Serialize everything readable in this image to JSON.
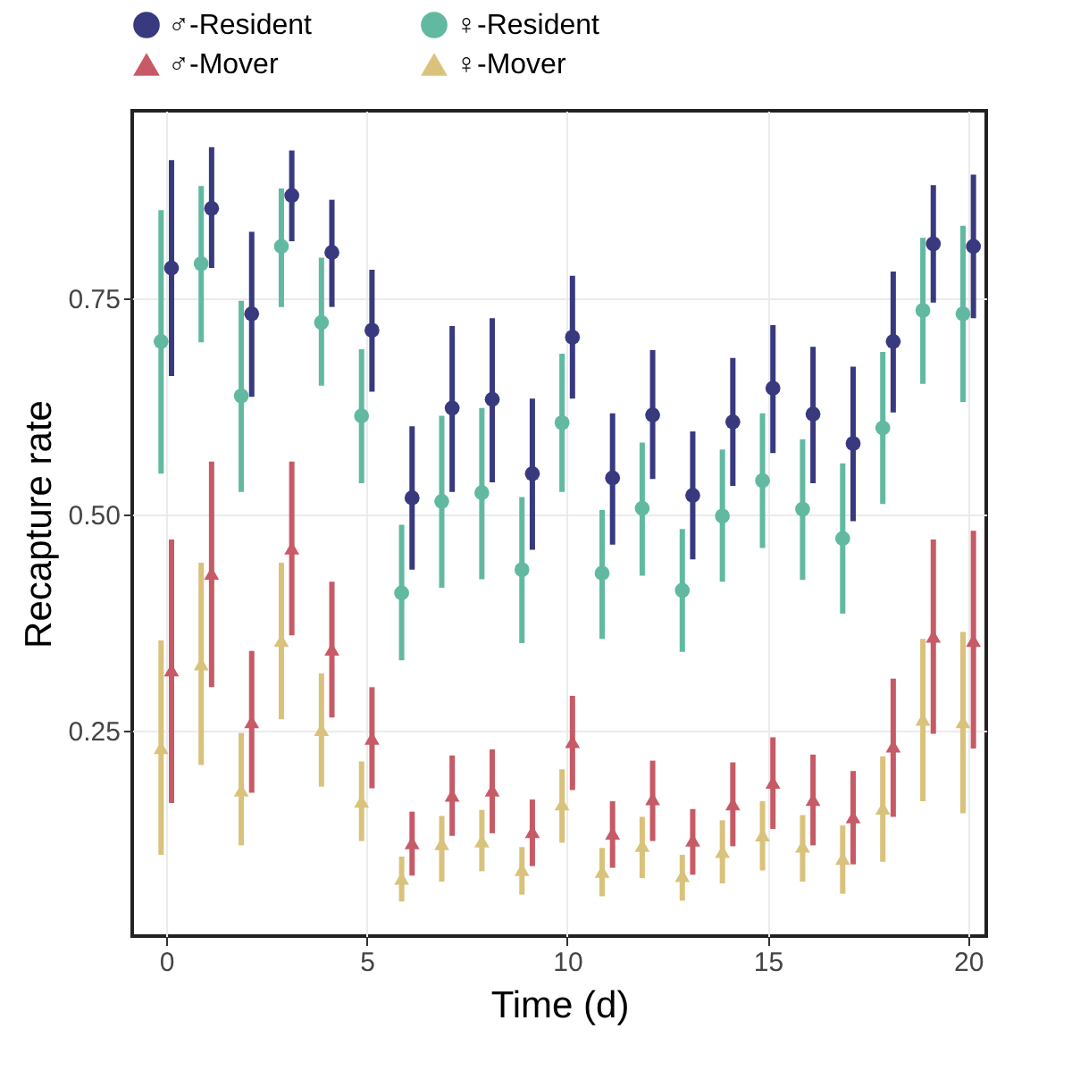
{
  "chart_data": {
    "type": "scatter",
    "xlabel": "Time (d)",
    "ylabel": "Recapture rate",
    "xlim": [
      -0.85,
      20.45
    ],
    "xticks": [
      0,
      5,
      10,
      15,
      20
    ],
    "ylim": [
      0.012,
      0.967
    ],
    "yticks": [
      {
        "value": 0.25,
        "label": "0.25"
      },
      {
        "value": 0.5,
        "label": "0.50"
      },
      {
        "value": 0.75,
        "label": "0.75"
      }
    ],
    "grid": true,
    "legend": "top",
    "series": [
      {
        "name": "♂-Resident",
        "color": "#38397f",
        "marker": "circle",
        "x": [
          0.13,
          1.13,
          2.13,
          3.13,
          4.13,
          5.13,
          6.13,
          7.13,
          8.13,
          9.13,
          10.13,
          11.13,
          12.13,
          13.13,
          14.13,
          15.13,
          16.13,
          17.13,
          18.13,
          19.13,
          20.13
        ],
        "values": [
          0.785,
          0.854,
          0.732,
          0.869,
          0.803,
          0.713,
          0.519,
          0.623,
          0.633,
          0.547,
          0.705,
          0.542,
          0.615,
          0.522,
          0.607,
          0.646,
          0.616,
          0.582,
          0.7,
          0.813,
          0.81
        ],
        "errors": [
          [
            0.66,
            0.91
          ],
          [
            0.785,
            0.925
          ],
          [
            0.636,
            0.827
          ],
          [
            0.816,
            0.921
          ],
          [
            0.74,
            0.864
          ],
          [
            0.642,
            0.783
          ],
          [
            0.436,
            0.602
          ],
          [
            0.526,
            0.718
          ],
          [
            0.537,
            0.727
          ],
          [
            0.459,
            0.634
          ],
          [
            0.634,
            0.776
          ],
          [
            0.465,
            0.617
          ],
          [
            0.541,
            0.69
          ],
          [
            0.448,
            0.596
          ],
          [
            0.533,
            0.681
          ],
          [
            0.571,
            0.719
          ],
          [
            0.536,
            0.694
          ],
          [
            0.492,
            0.671
          ],
          [
            0.618,
            0.781
          ],
          [
            0.745,
            0.881
          ],
          [
            0.727,
            0.893
          ]
        ]
      },
      {
        "name": "♀-Resident",
        "color": "#62b9a1",
        "marker": "circle",
        "x": [
          -0.13,
          0.87,
          1.87,
          2.87,
          3.87,
          4.87,
          5.87,
          6.87,
          7.87,
          8.87,
          9.87,
          10.87,
          11.87,
          12.87,
          13.87,
          14.87,
          15.87,
          16.87,
          17.87,
          18.87,
          19.87
        ],
        "values": [
          0.7,
          0.79,
          0.637,
          0.81,
          0.722,
          0.614,
          0.409,
          0.515,
          0.525,
          0.436,
          0.606,
          0.432,
          0.507,
          0.412,
          0.498,
          0.539,
          0.506,
          0.472,
          0.6,
          0.736,
          0.732
        ],
        "errors": [
          [
            0.547,
            0.852
          ],
          [
            0.699,
            0.88
          ],
          [
            0.526,
            0.747
          ],
          [
            0.74,
            0.877
          ],
          [
            0.649,
            0.797
          ],
          [
            0.536,
            0.691
          ],
          [
            0.331,
            0.488
          ],
          [
            0.415,
            0.614
          ],
          [
            0.425,
            0.623
          ],
          [
            0.351,
            0.52
          ],
          [
            0.526,
            0.686
          ],
          [
            0.356,
            0.505
          ],
          [
            0.429,
            0.583
          ],
          [
            0.341,
            0.483
          ],
          [
            0.422,
            0.575
          ],
          [
            0.461,
            0.617
          ],
          [
            0.424,
            0.587
          ],
          [
            0.385,
            0.559
          ],
          [
            0.512,
            0.688
          ],
          [
            0.651,
            0.82
          ],
          [
            0.63,
            0.834
          ]
        ]
      },
      {
        "name": "♂-Mover",
        "color": "#c65a66",
        "marker": "triangle",
        "x": [
          0.13,
          1.13,
          2.13,
          3.13,
          4.13,
          5.13,
          6.13,
          7.13,
          8.13,
          9.13,
          10.13,
          11.13,
          12.13,
          13.13,
          14.13,
          15.13,
          16.13,
          17.13,
          18.13,
          19.13,
          20.13
        ],
        "values": [
          0.32,
          0.432,
          0.26,
          0.461,
          0.344,
          0.241,
          0.12,
          0.175,
          0.181,
          0.133,
          0.237,
          0.131,
          0.171,
          0.123,
          0.165,
          0.19,
          0.17,
          0.15,
          0.232,
          0.359,
          0.354
        ],
        "errors": [
          [
            0.166,
            0.471
          ],
          [
            0.3,
            0.561
          ],
          [
            0.178,
            0.342
          ],
          [
            0.36,
            0.561
          ],
          [
            0.265,
            0.422
          ],
          [
            0.183,
            0.3
          ],
          [
            0.082,
            0.156
          ],
          [
            0.128,
            0.221
          ],
          [
            0.131,
            0.228
          ],
          [
            0.093,
            0.17
          ],
          [
            0.181,
            0.29
          ],
          [
            0.091,
            0.168
          ],
          [
            0.122,
            0.215
          ],
          [
            0.083,
            0.159
          ],
          [
            0.116,
            0.213
          ],
          [
            0.136,
            0.242
          ],
          [
            0.117,
            0.222
          ],
          [
            0.095,
            0.203
          ],
          [
            0.15,
            0.31
          ],
          [
            0.246,
            0.471
          ],
          [
            0.229,
            0.481
          ]
        ]
      },
      {
        "name": "♀-Mover",
        "color": "#d9c27c",
        "marker": "triangle",
        "x": [
          -0.13,
          0.87,
          1.87,
          2.87,
          3.87,
          4.87,
          5.87,
          6.87,
          7.87,
          8.87,
          9.87,
          10.87,
          11.87,
          12.87,
          13.87,
          14.87,
          15.87,
          16.87,
          17.87,
          18.87,
          19.87
        ],
        "values": [
          0.23,
          0.327,
          0.181,
          0.354,
          0.251,
          0.168,
          0.079,
          0.119,
          0.122,
          0.089,
          0.165,
          0.087,
          0.117,
          0.082,
          0.11,
          0.129,
          0.116,
          0.102,
          0.16,
          0.263,
          0.26
        ],
        "errors": [
          [
            0.106,
            0.354
          ],
          [
            0.21,
            0.444
          ],
          [
            0.117,
            0.247
          ],
          [
            0.263,
            0.444
          ],
          [
            0.185,
            0.316
          ],
          [
            0.122,
            0.214
          ],
          [
            0.052,
            0.104
          ],
          [
            0.075,
            0.151
          ],
          [
            0.087,
            0.158
          ],
          [
            0.06,
            0.115
          ],
          [
            0.12,
            0.205
          ],
          [
            0.058,
            0.114
          ],
          [
            0.079,
            0.15
          ],
          [
            0.053,
            0.106
          ],
          [
            0.073,
            0.146
          ],
          [
            0.088,
            0.168
          ],
          [
            0.075,
            0.152
          ],
          [
            0.061,
            0.14
          ],
          [
            0.098,
            0.22
          ],
          [
            0.168,
            0.356
          ],
          [
            0.154,
            0.364
          ]
        ]
      }
    ]
  }
}
